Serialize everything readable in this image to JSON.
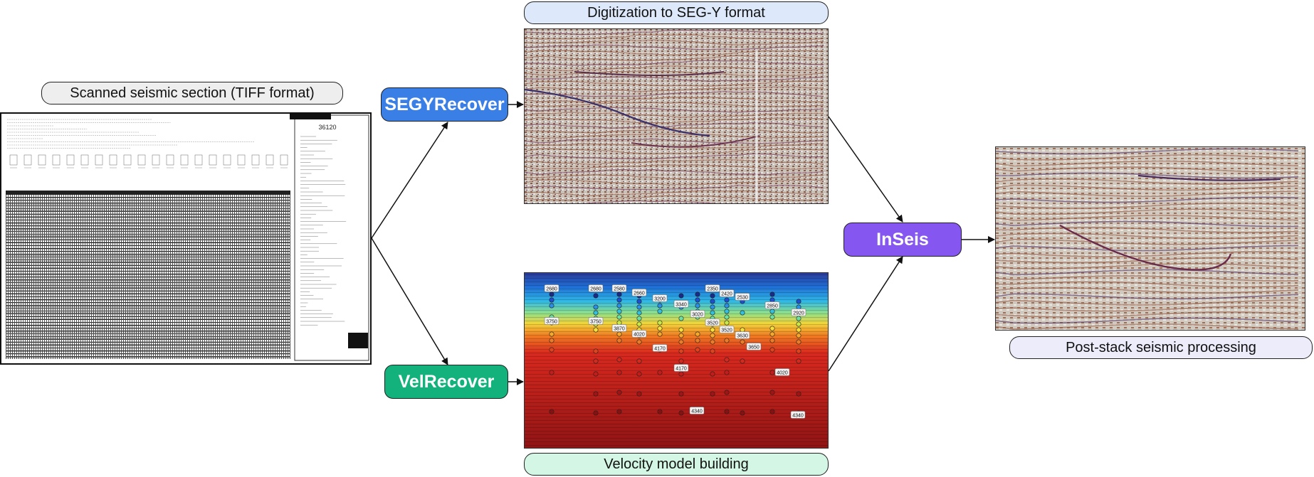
{
  "captions": {
    "scanned": "Scanned seismic section (TIFF format)",
    "digitization": "Digitization to SEG-Y format",
    "velocity": "Velocity model building",
    "poststack": "Post-stack seismic processing"
  },
  "tools": {
    "segyrecover": "SEGYRecover",
    "velrecover": "VelRecover",
    "inseis": "InSeis"
  },
  "colors": {
    "segyrecover": "#3a7fe6",
    "velrecover": "#13b27c",
    "inseis": "#8557f0",
    "digitization_caption": "#dde9fb",
    "scanned_caption": "#eeeeee",
    "velocity_caption": "#d4f6e4",
    "poststack_caption": "#ececfb"
  },
  "velocity_labels": [
    "2680",
    "2680",
    "2580",
    "2660",
    "3200",
    "3340",
    "3020",
    "2350",
    "2420",
    "2530",
    "2850",
    "2920",
    "3750",
    "3750",
    "3870",
    "4020",
    "3520",
    "3520",
    "3630",
    "3650",
    "4170",
    "4170",
    "4020",
    "4340",
    "4340"
  ],
  "scanned_header": "36120"
}
